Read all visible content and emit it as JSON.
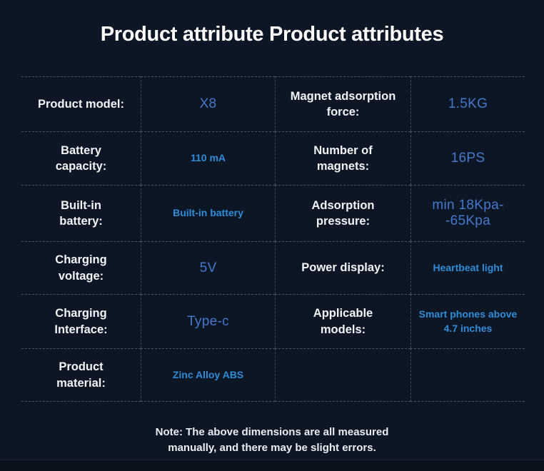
{
  "page": {
    "title": "Product attribute Product attributes",
    "note": "Note: The above dimensions are all measured\nmanually, and there may be slight errors."
  },
  "colors": {
    "background": "#0d1624",
    "label_text": "#f2f5f8",
    "value_plain_blue": "#4478cc",
    "value_bright_blue": "#2f8cd8",
    "grid_line": "#aabecd"
  },
  "table": {
    "rows": [
      {
        "left_label": "Product model:",
        "left_value": "X8",
        "left_value_style": "plain",
        "right_label": "Magnet adsorption\nforce:",
        "right_value": "1.5KG",
        "right_value_style": "plain"
      },
      {
        "left_label": "Battery\ncapacity:",
        "left_value": "110 mA",
        "left_value_style": "bold-small",
        "right_label": "Number of\nmagnets:",
        "right_value": "16PS",
        "right_value_style": "plain"
      },
      {
        "left_label": "Built-in\nbattery:",
        "left_value": "Built-in battery",
        "left_value_style": "bold-small",
        "right_label": "Adsorption\npressure:",
        "right_value": "min 18Kpa--65Kpa",
        "right_value_style": "plain"
      },
      {
        "left_label": "Charging\nvoltage:",
        "left_value": "5V",
        "left_value_style": "plain",
        "right_label": "Power display:",
        "right_value": "Heartbeat light",
        "right_value_style": "bold-small"
      },
      {
        "left_label": "Charging\nInterface:",
        "left_value": "Type-c",
        "left_value_style": "plain",
        "right_label": "Applicable\nmodels:",
        "right_value": "Smart phones above\n4.7 inches",
        "right_value_style": "bold-small"
      },
      {
        "left_label": "Product\nmaterial:",
        "left_value": "Zinc Alloy ABS",
        "left_value_style": "bold-small",
        "right_label": "",
        "right_value": "",
        "right_value_style": "plain"
      }
    ]
  }
}
